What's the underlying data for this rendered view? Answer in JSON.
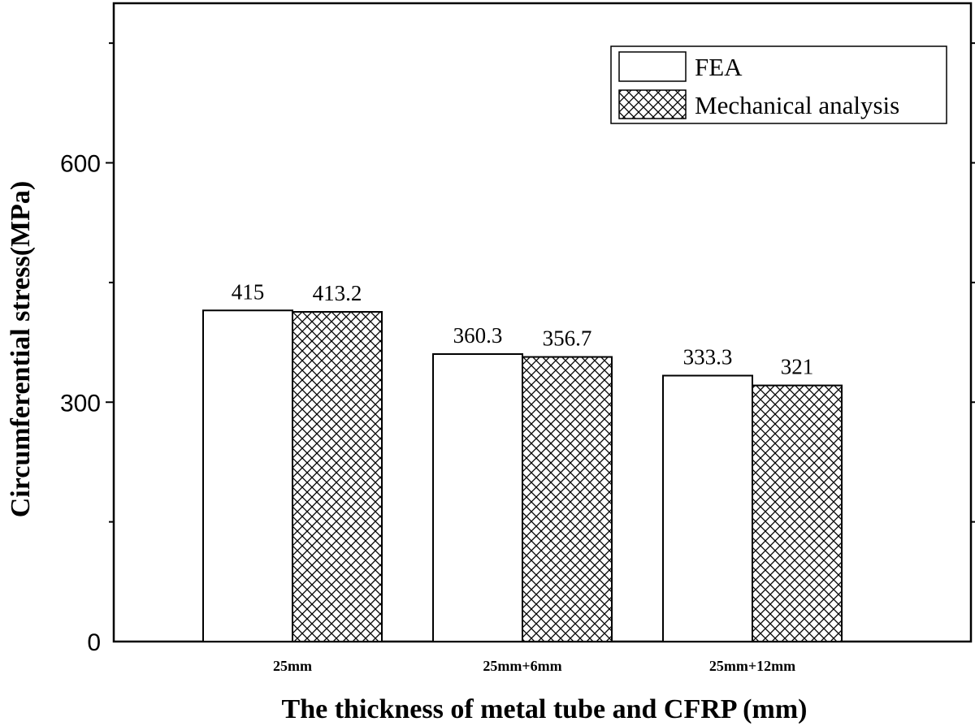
{
  "chart_data": {
    "type": "bar",
    "categories": [
      "25mm",
      "25mm+6mm",
      "25mm+12mm"
    ],
    "series": [
      {
        "name": "FEA",
        "values": [
          415,
          360.3,
          333.3
        ],
        "labels": [
          "415",
          "360.3",
          "333.3"
        ],
        "pattern": "none"
      },
      {
        "name": "Mechanical analysis",
        "values": [
          413.2,
          356.7,
          321
        ],
        "labels": [
          "413.2",
          "356.7",
          "321"
        ],
        "pattern": "crosshatch"
      }
    ],
    "title": "",
    "xlabel": "The thickness of metal tube and CFRP (mm)",
    "ylabel": "Circumferential stress(MPa)",
    "ylim": [
      0,
      800
    ],
    "yticks": [
      0,
      300,
      600
    ],
    "yticks_minor": [
      150,
      450,
      750
    ],
    "ytick_labels": [
      "0",
      "300",
      "600"
    ],
    "legend_position": "top-right",
    "grid": false
  }
}
